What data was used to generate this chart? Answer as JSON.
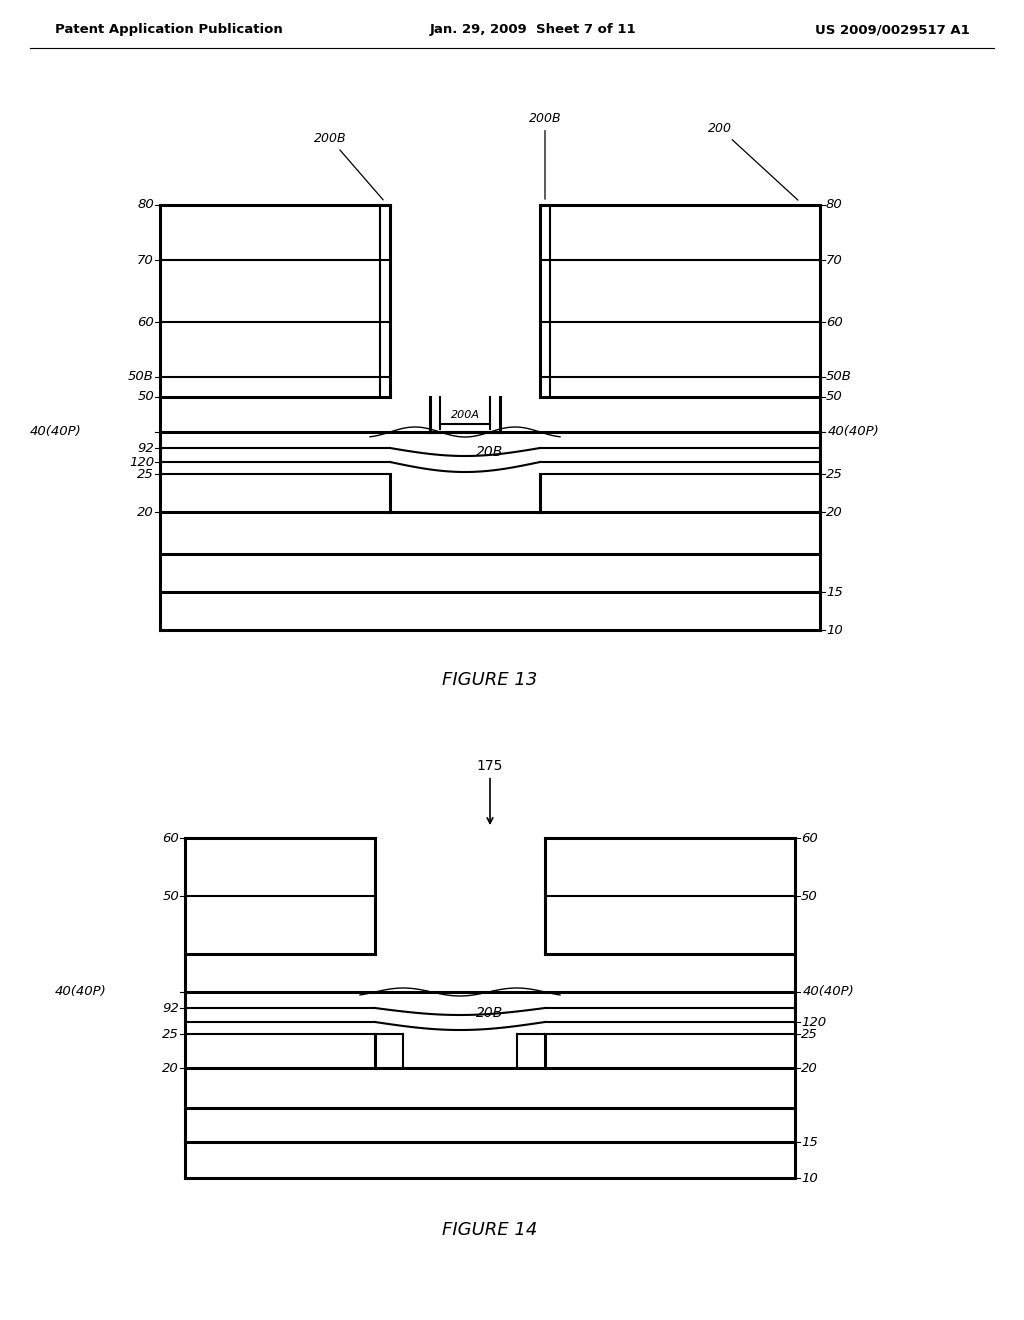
{
  "bg_color": "#ffffff",
  "header_left": "Patent Application Publication",
  "header_mid": "Jan. 29, 2009  Sheet 7 of 11",
  "header_right": "US 2009/0029517 A1",
  "fig13_caption": "FIGURE 13",
  "fig14_caption": "FIGURE 14"
}
